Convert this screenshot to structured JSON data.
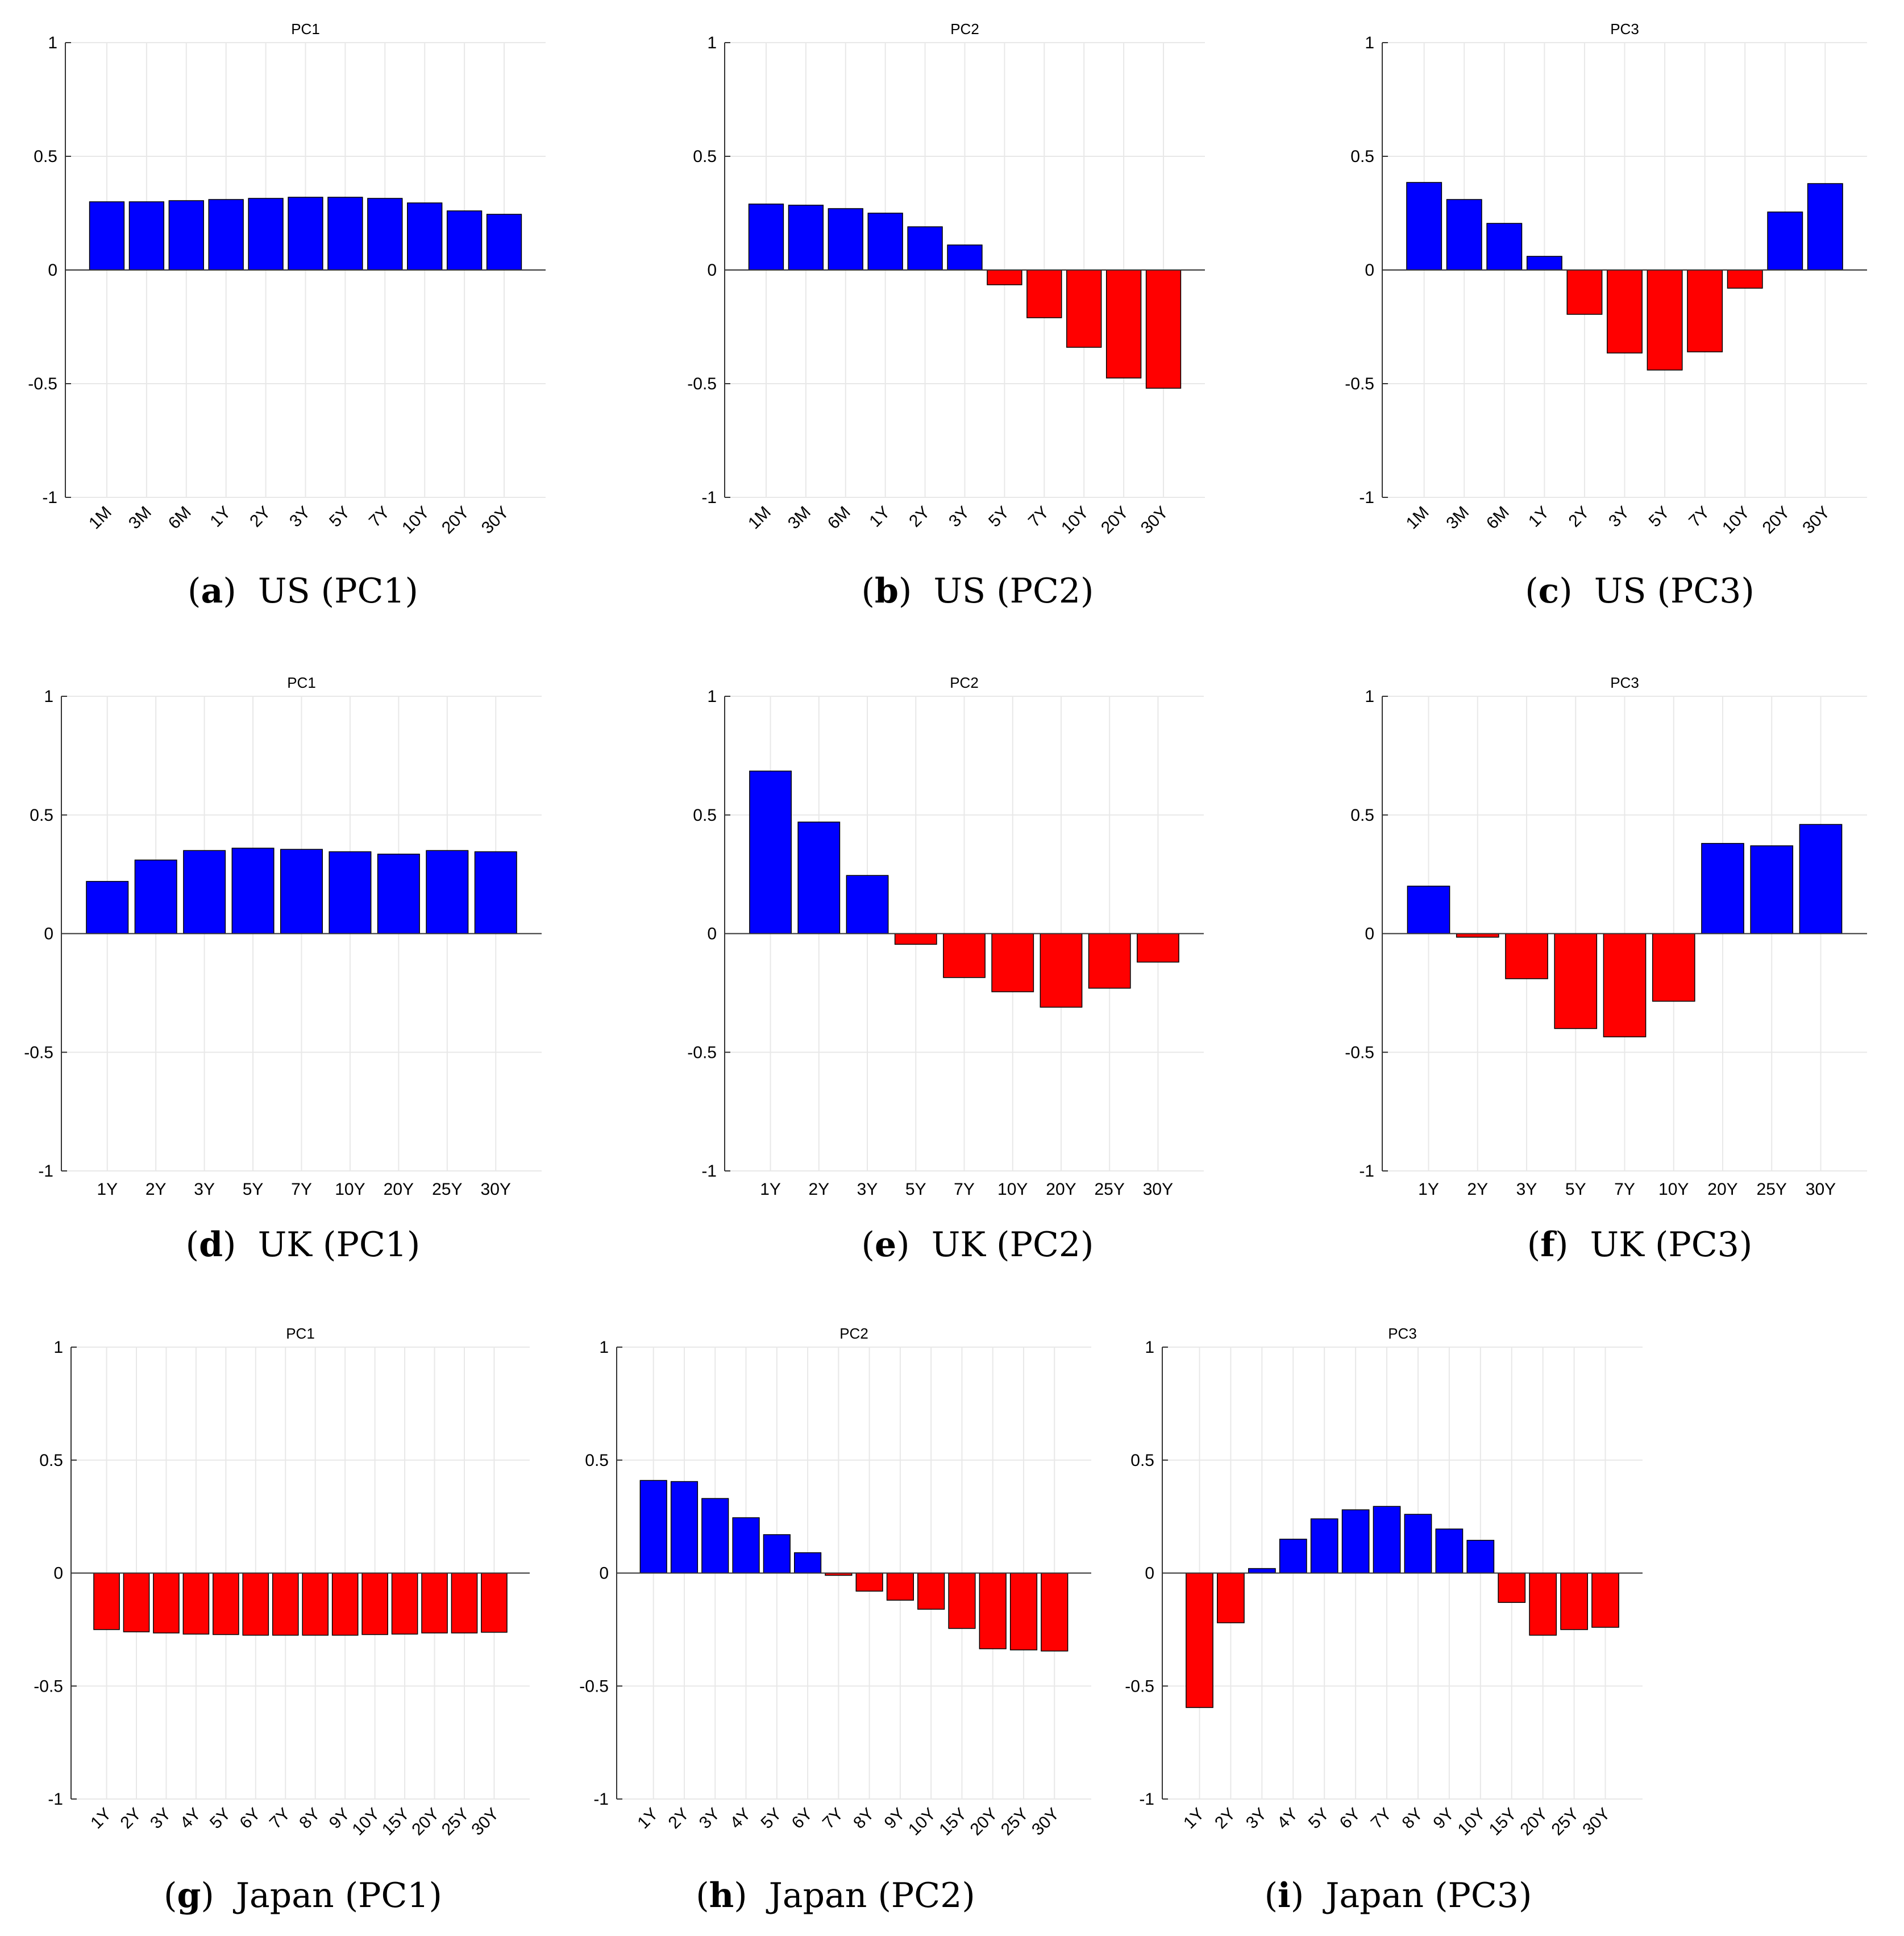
{
  "colors": {
    "positive": "#0000ff",
    "negative": "#ff0000",
    "grid": "#e8e8e8",
    "axis": "#333333"
  },
  "chart_data": [
    {
      "id": "a",
      "type": "bar",
      "title": "PC1",
      "caption_label": "a",
      "caption_text": "US (PC1)",
      "categories": [
        "1M",
        "3M",
        "6M",
        "1Y",
        "2Y",
        "3Y",
        "5Y",
        "7Y",
        "10Y",
        "20Y",
        "30Y"
      ],
      "values": [
        0.3,
        0.3,
        0.305,
        0.31,
        0.315,
        0.32,
        0.32,
        0.315,
        0.295,
        0.26,
        0.245
      ],
      "ylim": [
        -1,
        1
      ],
      "yticks": [
        1,
        0.5,
        0,
        -0.5,
        -1
      ],
      "ytick_labels": [
        "1",
        "0.5",
        "0",
        "-0.5",
        "-1"
      ],
      "rotated_labels": true,
      "grid": true
    },
    {
      "id": "b",
      "type": "bar",
      "title": "PC2",
      "caption_label": "b",
      "caption_text": "US (PC2)",
      "categories": [
        "1M",
        "3M",
        "6M",
        "1Y",
        "2Y",
        "3Y",
        "5Y",
        "7Y",
        "10Y",
        "20Y",
        "30Y"
      ],
      "values": [
        0.29,
        0.285,
        0.27,
        0.25,
        0.19,
        0.11,
        -0.065,
        -0.21,
        -0.34,
        -0.475,
        -0.52
      ],
      "ylim": [
        -1,
        1
      ],
      "yticks": [
        1,
        0.5,
        0,
        -0.5,
        -1
      ],
      "ytick_labels": [
        "1",
        "0.5",
        "0",
        "-0.5",
        "-1"
      ],
      "rotated_labels": true,
      "grid": true
    },
    {
      "id": "c",
      "type": "bar",
      "title": "PC3",
      "caption_label": "c",
      "caption_text": "US (PC3)",
      "categories": [
        "1M",
        "3M",
        "6M",
        "1Y",
        "2Y",
        "3Y",
        "5Y",
        "7Y",
        "10Y",
        "20Y",
        "30Y"
      ],
      "values": [
        0.385,
        0.31,
        0.205,
        0.06,
        -0.195,
        -0.365,
        -0.44,
        -0.36,
        -0.08,
        0.255,
        0.38
      ],
      "ylim": [
        -1,
        1
      ],
      "yticks": [
        1,
        0.5,
        0,
        -0.5,
        -1
      ],
      "ytick_labels": [
        "1",
        "0.5",
        "0",
        "-0.5",
        "-1"
      ],
      "rotated_labels": true,
      "grid": true
    },
    {
      "id": "d",
      "type": "bar",
      "title": "PC1",
      "caption_label": "d",
      "caption_text": "UK (PC1)",
      "categories": [
        "1Y",
        "2Y",
        "3Y",
        "5Y",
        "7Y",
        "10Y",
        "20Y",
        "25Y",
        "30Y"
      ],
      "values": [
        0.22,
        0.31,
        0.35,
        0.36,
        0.355,
        0.345,
        0.335,
        0.35,
        0.345
      ],
      "ylim": [
        -1,
        1
      ],
      "yticks": [
        1,
        0.5,
        0,
        -0.5,
        -1
      ],
      "ytick_labels": [
        "1",
        "0.5",
        "0",
        "-0.5",
        "-1"
      ],
      "rotated_labels": false,
      "grid": true
    },
    {
      "id": "e",
      "type": "bar",
      "title": "PC2",
      "caption_label": "e",
      "caption_text": "UK (PC2)",
      "categories": [
        "1Y",
        "2Y",
        "3Y",
        "5Y",
        "7Y",
        "10Y",
        "20Y",
        "25Y",
        "30Y"
      ],
      "values": [
        0.685,
        0.47,
        0.245,
        -0.045,
        -0.185,
        -0.245,
        -0.31,
        -0.23,
        -0.12
      ],
      "ylim": [
        -1,
        1
      ],
      "yticks": [
        1,
        0.5,
        0,
        -0.5,
        -1
      ],
      "ytick_labels": [
        "1",
        "0.5",
        "0",
        "-0.5",
        "-1"
      ],
      "rotated_labels": false,
      "grid": true
    },
    {
      "id": "f",
      "type": "bar",
      "title": "PC3",
      "caption_label": "f",
      "caption_text": "UK (PC3)",
      "categories": [
        "1Y",
        "2Y",
        "3Y",
        "5Y",
        "7Y",
        "10Y",
        "20Y",
        "25Y",
        "30Y"
      ],
      "values": [
        0.2,
        -0.015,
        -0.19,
        -0.4,
        -0.435,
        -0.285,
        0.38,
        0.37,
        0.46
      ],
      "ylim": [
        -1,
        1
      ],
      "yticks": [
        1,
        0.5,
        0,
        -0.5,
        -1
      ],
      "ytick_labels": [
        "1",
        "0.5",
        "0",
        "-0.5",
        "-1"
      ],
      "rotated_labels": false,
      "grid": true
    },
    {
      "id": "g",
      "type": "bar",
      "title": "PC1",
      "caption_label": "g",
      "caption_text": "Japan (PC1)",
      "categories": [
        "1Y",
        "2Y",
        "3Y",
        "4Y",
        "5Y",
        "6Y",
        "7Y",
        "8Y",
        "9Y",
        "10Y",
        "15Y",
        "20Y",
        "25Y",
        "30Y"
      ],
      "values": [
        -0.25,
        -0.26,
        -0.265,
        -0.27,
        -0.272,
        -0.275,
        -0.275,
        -0.275,
        -0.275,
        -0.272,
        -0.27,
        -0.265,
        -0.265,
        -0.262
      ],
      "ylim": [
        -1,
        1
      ],
      "yticks": [
        1,
        0.5,
        0,
        -0.5,
        -1
      ],
      "ytick_labels": [
        "1",
        "0.5",
        "0",
        "-0.5",
        "-1"
      ],
      "rotated_labels": true,
      "grid": true
    },
    {
      "id": "h",
      "type": "bar",
      "title": "PC2",
      "caption_label": "h",
      "caption_text": "Japan (PC2)",
      "categories": [
        "1Y",
        "2Y",
        "3Y",
        "4Y",
        "5Y",
        "6Y",
        "7Y",
        "8Y",
        "9Y",
        "10Y",
        "15Y",
        "20Y",
        "25Y",
        "30Y"
      ],
      "values": [
        0.41,
        0.405,
        0.33,
        0.245,
        0.17,
        0.09,
        -0.01,
        -0.08,
        -0.12,
        -0.16,
        -0.245,
        -0.335,
        -0.34,
        -0.345
      ],
      "ylim": [
        -1,
        1
      ],
      "yticks": [
        1,
        0.5,
        0,
        -0.5,
        -1
      ],
      "ytick_labels": [
        "1",
        "0.5",
        "0",
        "-0.5",
        "-1"
      ],
      "rotated_labels": true,
      "grid": true
    },
    {
      "id": "i",
      "type": "bar",
      "title": "PC3",
      "caption_label": "i",
      "caption_text": "Japan (PC3)",
      "categories": [
        "1Y",
        "2Y",
        "3Y",
        "4Y",
        "5Y",
        "6Y",
        "7Y",
        "8Y",
        "9Y",
        "10Y",
        "15Y",
        "20Y",
        "25Y",
        "30Y"
      ],
      "values": [
        -0.595,
        -0.22,
        0.02,
        0.15,
        0.24,
        0.28,
        0.295,
        0.26,
        0.195,
        0.145,
        -0.13,
        -0.275,
        -0.25,
        -0.24
      ],
      "ylim": [
        -1,
        1
      ],
      "yticks": [
        1,
        0.5,
        0,
        -0.5,
        -1
      ],
      "ytick_labels": [
        "1",
        "0.5",
        "0",
        "-0.5",
        "-1"
      ],
      "rotated_labels": true,
      "grid": true
    }
  ]
}
